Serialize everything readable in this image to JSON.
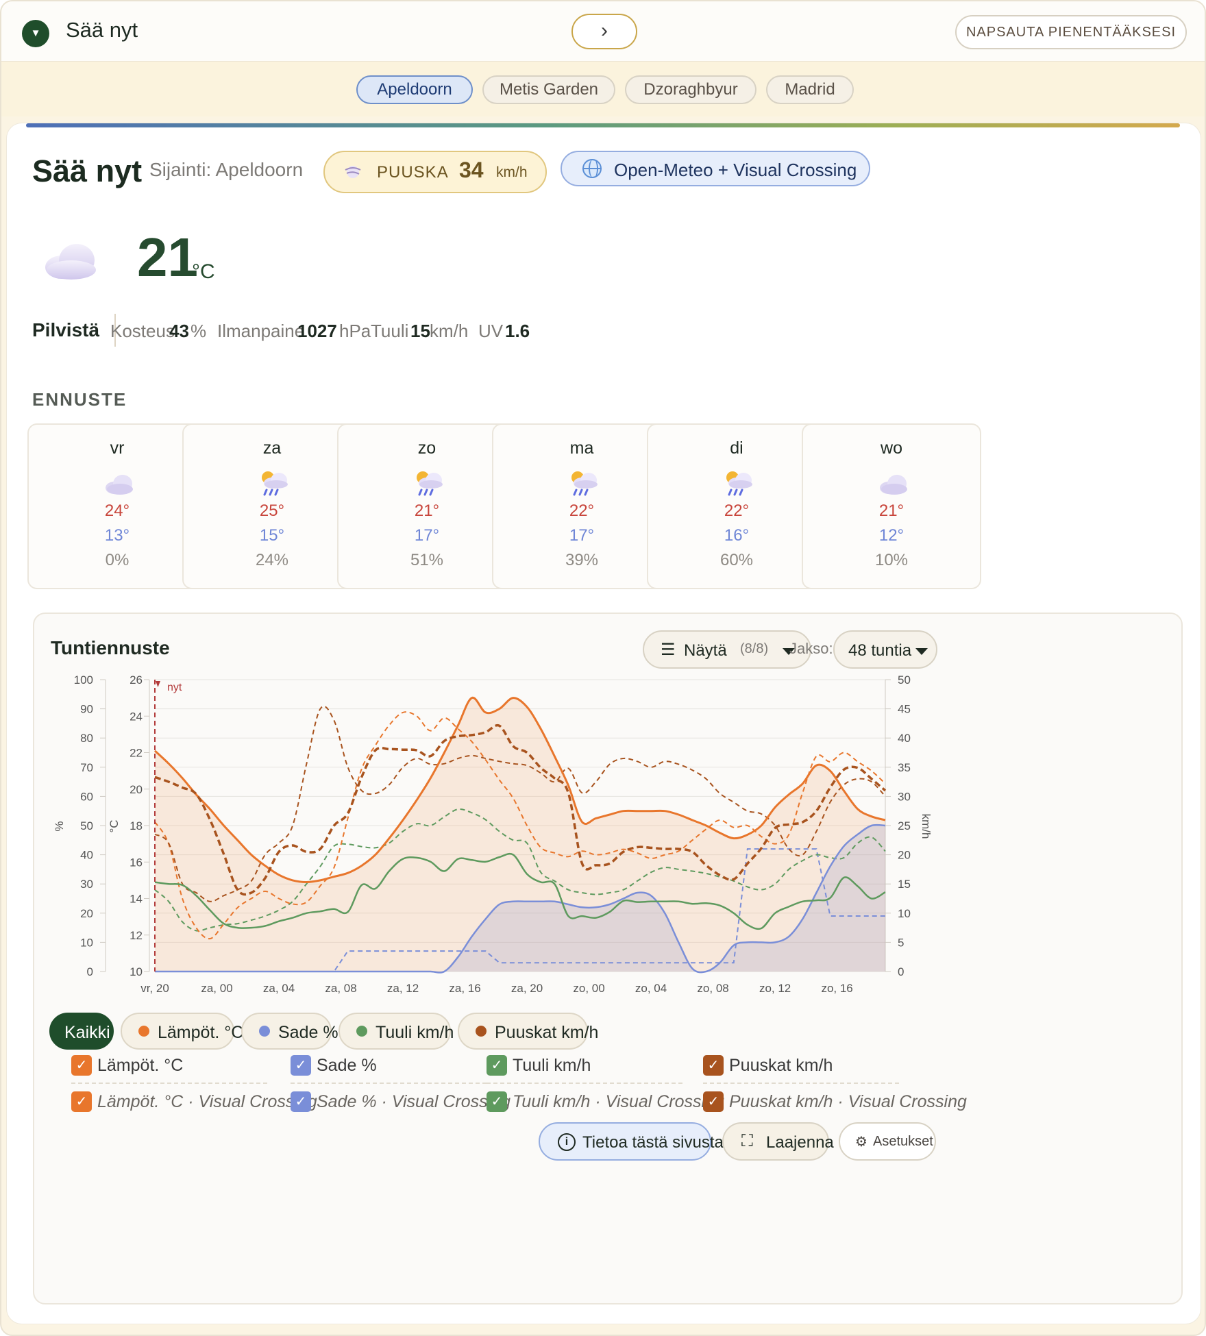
{
  "topbar": {
    "title": "Sää nyt",
    "collapse_glyph": "▼",
    "next_glyph": "›",
    "minimize_label": "NAPSAUTA PIENENTÄÄKSESI"
  },
  "locations": [
    "Apeldoorn",
    "Metis Garden",
    "Dzoraghbyur",
    "Madrid"
  ],
  "active_location": "Apeldoorn",
  "header": {
    "title": "Sää nyt",
    "location_text": "Sijainti: Apeldoorn",
    "gust_label": "PUUSKA",
    "gust_value": "34",
    "gust_unit": "km/h",
    "source_label": "Open-Meteo + Visual Crossing"
  },
  "current": {
    "icon": "cloud-icon",
    "temperature": "21",
    "unit": "°C",
    "condition": "Pilvistä",
    "humidity_label": "Kosteus",
    "humidity_value": "43",
    "humidity_unit": "%",
    "pressure_label": "Ilmanpaine",
    "pressure_value": "1027",
    "pressure_unit": "hPa",
    "wind_label": "Tuuli",
    "wind_value": "15",
    "wind_unit": "km/h",
    "uv_label": "UV",
    "uv_value": "1.6"
  },
  "forecast": {
    "title": "ENNUSTE",
    "days": [
      {
        "name": "vr",
        "icon": "cloud-icon",
        "hi": "24°",
        "lo": "13°",
        "pop": "0%"
      },
      {
        "name": "za",
        "icon": "sun-rain-icon",
        "hi": "25°",
        "lo": "15°",
        "pop": "24%"
      },
      {
        "name": "zo",
        "icon": "sun-rain-icon",
        "hi": "21°",
        "lo": "17°",
        "pop": "51%"
      },
      {
        "name": "ma",
        "icon": "sun-rain-icon",
        "hi": "22°",
        "lo": "17°",
        "pop": "39%"
      },
      {
        "name": "di",
        "icon": "sun-rain-icon",
        "hi": "22°",
        "lo": "16°",
        "pop": "60%"
      },
      {
        "name": "wo",
        "icon": "cloud-icon",
        "hi": "21°",
        "lo": "12°",
        "pop": "10%"
      }
    ]
  },
  "hourly": {
    "title": "Tuntiennuste",
    "show_label": "Näytä",
    "show_count": "(8/8)",
    "period_label": "Jakso:",
    "period_value": "48 tuntia",
    "filter_pills": [
      {
        "label": "Kaikki",
        "color": "#1f4d2b"
      },
      {
        "label": "Lämpöt. °C",
        "color": "#e8762c"
      },
      {
        "label": "Sade %",
        "color": "#7a8ed8"
      },
      {
        "label": "Tuuli km/h",
        "color": "#5e9a5e"
      },
      {
        "label": "Puuskat km/h",
        "color": "#a8531e"
      }
    ],
    "checkboxes": [
      {
        "label": "Lämpöt. °C",
        "color": "#e8762c"
      },
      {
        "label": "Sade %",
        "color": "#7a8ed8"
      },
      {
        "label": "Tuuli km/h",
        "color": "#5e9a5e"
      },
      {
        "label": "Puuskat km/h",
        "color": "#a8531e"
      },
      {
        "label": "Lämpöt. °C · Visual Crossing",
        "color": "#e8762c"
      },
      {
        "label": "Sade % · Visual Crossing",
        "color": "#7a8ed8"
      },
      {
        "label": "Tuuli km/h · Visual Crossing",
        "color": "#5e9a5e"
      },
      {
        "label": "Puuskat km/h · Visual Crossing",
        "color": "#a8531e"
      }
    ],
    "checkmark": "✓",
    "footer": {
      "info_label": "Tietoa tästä sivusta",
      "expand_label": "Laajenna",
      "settings_label": "Asetukset"
    }
  },
  "chart_data": {
    "type": "line",
    "x_ticks": [
      "vr, 20",
      "za, 00",
      "za, 04",
      "za, 08",
      "za, 12",
      "za, 16",
      "za, 20",
      "zo, 00",
      "zo, 04",
      "zo, 08",
      "zo, 12",
      "zo, 16"
    ],
    "now_label": "nyt",
    "axes": {
      "percent": {
        "label": "%",
        "range": [
          0,
          100
        ],
        "ticks": [
          0,
          10,
          20,
          30,
          40,
          50,
          60,
          70,
          80,
          90,
          100
        ]
      },
      "temperature": {
        "label": "°C",
        "range": [
          10,
          26
        ],
        "ticks": [
          10,
          12,
          14,
          16,
          18,
          20,
          22,
          24,
          26
        ]
      },
      "speed": {
        "label": "km/h",
        "range": [
          0,
          50
        ],
        "ticks": [
          0,
          5,
          10,
          15,
          20,
          25,
          30,
          35,
          40,
          45,
          50
        ]
      }
    },
    "series": [
      {
        "name": "Lämpöt. °C",
        "axis": "temperature",
        "color": "#e8762c",
        "style": "solid",
        "fill": true,
        "values": [
          22.1,
          21.4,
          20.6,
          19.7,
          18.9,
          18.0,
          17.2,
          16.4,
          15.8,
          15.3,
          15.0,
          14.9,
          15.0,
          15.2,
          15.4,
          15.8,
          16.4,
          17.3,
          18.3,
          19.4,
          20.6,
          22.0,
          23.5,
          25.0,
          24.2,
          24.4,
          25.0,
          24.5,
          23.3,
          21.8,
          20.2,
          18.2,
          18.4,
          18.6,
          18.8,
          18.8,
          18.8,
          18.8,
          18.6,
          18.3,
          18.0,
          17.6,
          17.3,
          17.5,
          18.0,
          19.0,
          19.7,
          20.3,
          21.3,
          21.0,
          19.9,
          18.9,
          18.5,
          18.3
        ]
      },
      {
        "name": "Sade %",
        "axis": "percent",
        "color": "#7a8ed8",
        "style": "solid",
        "fill": true,
        "values": [
          0,
          0,
          0,
          0,
          0,
          0,
          0,
          0,
          0,
          0,
          0,
          0,
          0,
          0,
          0,
          0,
          0,
          0,
          0,
          0,
          0,
          0,
          5,
          12,
          18,
          23,
          24,
          24,
          24,
          24,
          23,
          22,
          22,
          23,
          25,
          27,
          26,
          20,
          10,
          1,
          0,
          3,
          9,
          10,
          10,
          10,
          12,
          18,
          27,
          36,
          43,
          47,
          50,
          50
        ]
      },
      {
        "name": "Tuuli km/h",
        "axis": "speed",
        "color": "#5e9a5e",
        "style": "solid",
        "fill": false,
        "values": [
          15.3,
          15.0,
          14.8,
          13.0,
          10.5,
          8.2,
          7.5,
          7.5,
          7.8,
          8.6,
          9.2,
          10.0,
          10.3,
          10.7,
          10.2,
          14.8,
          14.2,
          17.2,
          19.3,
          19.5,
          18.8,
          17.2,
          19.3,
          19.1,
          18.8,
          19.6,
          20.0,
          16.7,
          15.3,
          15.0,
          9.5,
          9.5,
          9.2,
          10.2,
          12.1,
          11.9,
          12.0,
          12.0,
          12.0,
          11.6,
          11.7,
          11.3,
          10.0,
          8.0,
          7.4,
          10.0,
          11.1,
          12.0,
          12.2,
          12.6,
          16.1,
          14.6,
          12.5,
          13.6
        ]
      },
      {
        "name": "Puuskat km/h",
        "axis": "speed",
        "color": "#a8531e",
        "style": "dashed-thick",
        "fill": false,
        "values": [
          33.3,
          32.5,
          31.5,
          30.4,
          26.0,
          20.1,
          14.0,
          13.5,
          16.0,
          20.5,
          21.6,
          20.5,
          21.0,
          25.0,
          27.1,
          33.3,
          37.9,
          38.1,
          38.0,
          37.9,
          36.9,
          39.5,
          40.3,
          40.5,
          41.0,
          42.1,
          38.6,
          37.5,
          34.9,
          33.1,
          30.6,
          18.5,
          18.2,
          18.5,
          20.5,
          21.3,
          21.2,
          21.0,
          21.0,
          20.5,
          18.2,
          16.5,
          15.8,
          18.5,
          21.1,
          24.6,
          25.2,
          25.6,
          27.5,
          31.5,
          34.6,
          34.9,
          33.0,
          31.0
        ]
      },
      {
        "name": "Lämpöt. °C · Visual Crossing",
        "axis": "temperature",
        "color": "#e8762c",
        "style": "dashed",
        "fill": false,
        "values": [
          18.2,
          17.0,
          14.0,
          12.4,
          11.8,
          12.6,
          13.5,
          14.0,
          14.4,
          14.0,
          13.7,
          13.8,
          14.7,
          15.7,
          18.4,
          21.1,
          22.4,
          23.5,
          24.2,
          24.0,
          23.2,
          23.9,
          23.3,
          22.6,
          21.6,
          20.5,
          19.5,
          18.0,
          16.8,
          16.5,
          16.3,
          16.6,
          16.4,
          16.5,
          16.7,
          16.5,
          16.2,
          16.4,
          16.6,
          17.2,
          17.8,
          18.3,
          17.9,
          18.0,
          17.4,
          17.0,
          17.5,
          19.8,
          21.8,
          21.5,
          22.0,
          21.5,
          21.0,
          20.3
        ]
      },
      {
        "name": "Sade % · Visual Crossing",
        "axis": "percent",
        "color": "#7a8ed8",
        "style": "dashed",
        "fill": false,
        "values": [
          0,
          0,
          0,
          0,
          0,
          0,
          0,
          0,
          0,
          0,
          0,
          0,
          0,
          0,
          7,
          7,
          7,
          7,
          7,
          7,
          7,
          7,
          7,
          7,
          7,
          3,
          3,
          3,
          3,
          3,
          3,
          3,
          3,
          3,
          3,
          3,
          3,
          3,
          3,
          3,
          3,
          3,
          3,
          42,
          42,
          42,
          42,
          42,
          42,
          19,
          19,
          19,
          19,
          19
        ]
      },
      {
        "name": "Tuuli km/h · Visual Crossing",
        "axis": "speed",
        "color": "#5e9a5e",
        "style": "dashed",
        "fill": false,
        "values": [
          14.0,
          12.0,
          8.5,
          7.0,
          7.5,
          8.0,
          8.2,
          8.8,
          9.5,
          10.5,
          12.0,
          15.0,
          18.0,
          21.5,
          21.8,
          21.4,
          21.2,
          22.0,
          24.0,
          25.3,
          25.0,
          26.5,
          27.8,
          27.2,
          26.0,
          24.0,
          22.5,
          22.0,
          17.0,
          15.5,
          14.0,
          13.5,
          13.2,
          13.5,
          14.0,
          15.5,
          17.0,
          17.8,
          17.5,
          17.2,
          16.8,
          16.2,
          15.5,
          14.5,
          14.0,
          15.0,
          17.5,
          19.0,
          20.0,
          19.5,
          19.5,
          22.0,
          23.0,
          20.6
        ]
      },
      {
        "name": "Puuskat km/h · Visual Crossing",
        "axis": "speed",
        "color": "#a8531e",
        "style": "dashed",
        "fill": false,
        "values": [
          23.5,
          22.0,
          15.0,
          13.5,
          12.0,
          13.0,
          14.0,
          15.5,
          20.0,
          22.0,
          25.0,
          35.5,
          45.0,
          43.0,
          35.0,
          31.0,
          30.5,
          32.0,
          35.0,
          36.5,
          35.5,
          35.6,
          36.5,
          37.0,
          36.5,
          36.0,
          35.6,
          35.3,
          34.0,
          32.5,
          34.8,
          30.6,
          32.5,
          35.5,
          36.5,
          36.0,
          35.0,
          36.0,
          35.5,
          34.5,
          33.0,
          30.5,
          29.0,
          27.5,
          27.0,
          25.0,
          21.0,
          20.0,
          24.0,
          29.0,
          32.0,
          33.0,
          32.5,
          30.0
        ]
      }
    ]
  }
}
